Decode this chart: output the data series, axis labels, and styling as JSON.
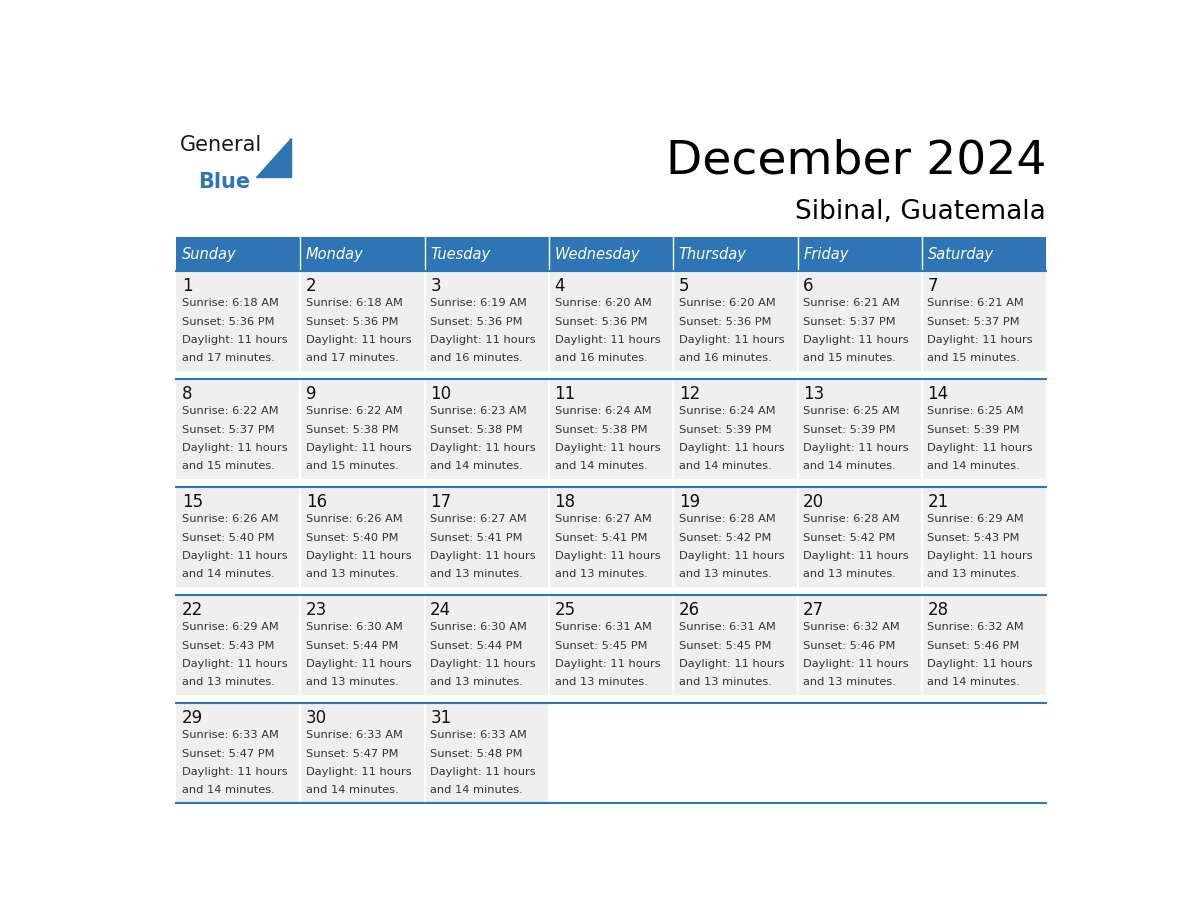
{
  "title": "December 2024",
  "subtitle": "Sibinal, Guatemala",
  "header_color": "#2E75B6",
  "header_text_color": "#FFFFFF",
  "day_names": [
    "Sunday",
    "Monday",
    "Tuesday",
    "Wednesday",
    "Thursday",
    "Friday",
    "Saturday"
  ],
  "weeks": [
    [
      {
        "day": 1,
        "sunrise": "6:18 AM",
        "sunset": "5:36 PM",
        "daylight_line1": "Daylight: 11 hours",
        "daylight_line2": "and 17 minutes."
      },
      {
        "day": 2,
        "sunrise": "6:18 AM",
        "sunset": "5:36 PM",
        "daylight_line1": "Daylight: 11 hours",
        "daylight_line2": "and 17 minutes."
      },
      {
        "day": 3,
        "sunrise": "6:19 AM",
        "sunset": "5:36 PM",
        "daylight_line1": "Daylight: 11 hours",
        "daylight_line2": "and 16 minutes."
      },
      {
        "day": 4,
        "sunrise": "6:20 AM",
        "sunset": "5:36 PM",
        "daylight_line1": "Daylight: 11 hours",
        "daylight_line2": "and 16 minutes."
      },
      {
        "day": 5,
        "sunrise": "6:20 AM",
        "sunset": "5:36 PM",
        "daylight_line1": "Daylight: 11 hours",
        "daylight_line2": "and 16 minutes."
      },
      {
        "day": 6,
        "sunrise": "6:21 AM",
        "sunset": "5:37 PM",
        "daylight_line1": "Daylight: 11 hours",
        "daylight_line2": "and 15 minutes."
      },
      {
        "day": 7,
        "sunrise": "6:21 AM",
        "sunset": "5:37 PM",
        "daylight_line1": "Daylight: 11 hours",
        "daylight_line2": "and 15 minutes."
      }
    ],
    [
      {
        "day": 8,
        "sunrise": "6:22 AM",
        "sunset": "5:37 PM",
        "daylight_line1": "Daylight: 11 hours",
        "daylight_line2": "and 15 minutes."
      },
      {
        "day": 9,
        "sunrise": "6:22 AM",
        "sunset": "5:38 PM",
        "daylight_line1": "Daylight: 11 hours",
        "daylight_line2": "and 15 minutes."
      },
      {
        "day": 10,
        "sunrise": "6:23 AM",
        "sunset": "5:38 PM",
        "daylight_line1": "Daylight: 11 hours",
        "daylight_line2": "and 14 minutes."
      },
      {
        "day": 11,
        "sunrise": "6:24 AM",
        "sunset": "5:38 PM",
        "daylight_line1": "Daylight: 11 hours",
        "daylight_line2": "and 14 minutes."
      },
      {
        "day": 12,
        "sunrise": "6:24 AM",
        "sunset": "5:39 PM",
        "daylight_line1": "Daylight: 11 hours",
        "daylight_line2": "and 14 minutes."
      },
      {
        "day": 13,
        "sunrise": "6:25 AM",
        "sunset": "5:39 PM",
        "daylight_line1": "Daylight: 11 hours",
        "daylight_line2": "and 14 minutes."
      },
      {
        "day": 14,
        "sunrise": "6:25 AM",
        "sunset": "5:39 PM",
        "daylight_line1": "Daylight: 11 hours",
        "daylight_line2": "and 14 minutes."
      }
    ],
    [
      {
        "day": 15,
        "sunrise": "6:26 AM",
        "sunset": "5:40 PM",
        "daylight_line1": "Daylight: 11 hours",
        "daylight_line2": "and 14 minutes."
      },
      {
        "day": 16,
        "sunrise": "6:26 AM",
        "sunset": "5:40 PM",
        "daylight_line1": "Daylight: 11 hours",
        "daylight_line2": "and 13 minutes."
      },
      {
        "day": 17,
        "sunrise": "6:27 AM",
        "sunset": "5:41 PM",
        "daylight_line1": "Daylight: 11 hours",
        "daylight_line2": "and 13 minutes."
      },
      {
        "day": 18,
        "sunrise": "6:27 AM",
        "sunset": "5:41 PM",
        "daylight_line1": "Daylight: 11 hours",
        "daylight_line2": "and 13 minutes."
      },
      {
        "day": 19,
        "sunrise": "6:28 AM",
        "sunset": "5:42 PM",
        "daylight_line1": "Daylight: 11 hours",
        "daylight_line2": "and 13 minutes."
      },
      {
        "day": 20,
        "sunrise": "6:28 AM",
        "sunset": "5:42 PM",
        "daylight_line1": "Daylight: 11 hours",
        "daylight_line2": "and 13 minutes."
      },
      {
        "day": 21,
        "sunrise": "6:29 AM",
        "sunset": "5:43 PM",
        "daylight_line1": "Daylight: 11 hours",
        "daylight_line2": "and 13 minutes."
      }
    ],
    [
      {
        "day": 22,
        "sunrise": "6:29 AM",
        "sunset": "5:43 PM",
        "daylight_line1": "Daylight: 11 hours",
        "daylight_line2": "and 13 minutes."
      },
      {
        "day": 23,
        "sunrise": "6:30 AM",
        "sunset": "5:44 PM",
        "daylight_line1": "Daylight: 11 hours",
        "daylight_line2": "and 13 minutes."
      },
      {
        "day": 24,
        "sunrise": "6:30 AM",
        "sunset": "5:44 PM",
        "daylight_line1": "Daylight: 11 hours",
        "daylight_line2": "and 13 minutes."
      },
      {
        "day": 25,
        "sunrise": "6:31 AM",
        "sunset": "5:45 PM",
        "daylight_line1": "Daylight: 11 hours",
        "daylight_line2": "and 13 minutes."
      },
      {
        "day": 26,
        "sunrise": "6:31 AM",
        "sunset": "5:45 PM",
        "daylight_line1": "Daylight: 11 hours",
        "daylight_line2": "and 13 minutes."
      },
      {
        "day": 27,
        "sunrise": "6:32 AM",
        "sunset": "5:46 PM",
        "daylight_line1": "Daylight: 11 hours",
        "daylight_line2": "and 13 minutes."
      },
      {
        "day": 28,
        "sunrise": "6:32 AM",
        "sunset": "5:46 PM",
        "daylight_line1": "Daylight: 11 hours",
        "daylight_line2": "and 14 minutes."
      }
    ],
    [
      {
        "day": 29,
        "sunrise": "6:33 AM",
        "sunset": "5:47 PM",
        "daylight_line1": "Daylight: 11 hours",
        "daylight_line2": "and 14 minutes."
      },
      {
        "day": 30,
        "sunrise": "6:33 AM",
        "sunset": "5:47 PM",
        "daylight_line1": "Daylight: 11 hours",
        "daylight_line2": "and 14 minutes."
      },
      {
        "day": 31,
        "sunrise": "6:33 AM",
        "sunset": "5:48 PM",
        "daylight_line1": "Daylight: 11 hours",
        "daylight_line2": "and 14 minutes."
      },
      null,
      null,
      null,
      null
    ]
  ],
  "cell_bg_color": "#EFEFEF",
  "cell_empty_color": "#FFFFFF",
  "divider_color": "#2E75B6",
  "white_gap_color": "#FFFFFF",
  "info_text_color": "#333333",
  "day_num_color": "#111111",
  "logo_text1_color": "#1a1a1a",
  "logo_text2_color": "#2E75B6",
  "logo_triangle_color": "#2E75B6",
  "fig_width": 11.88,
  "fig_height": 9.18
}
